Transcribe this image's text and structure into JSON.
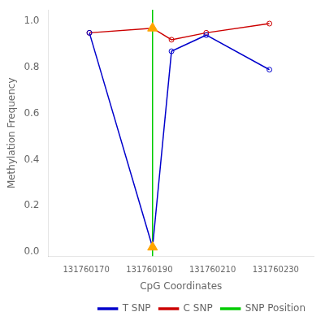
{
  "chart_data": {
    "type": "line",
    "xlabel": "CpG Coordinates",
    "ylabel": "Methylation Frequency",
    "x": [
      131760171,
      131760191,
      131760197,
      131760208,
      131760228
    ],
    "series": [
      {
        "name": "T SNP",
        "color": "#0000CC",
        "marker": "circle",
        "values": [
          0.95,
          0.02,
          0.87,
          0.94,
          0.79
        ]
      },
      {
        "name": "C SNP",
        "color": "#CC0000",
        "marker": "circle",
        "values": [
          0.95,
          0.97,
          0.92,
          0.95,
          0.99
        ]
      },
      {
        "name": "SNP Position",
        "type": "vline",
        "color": "#00CC00",
        "x": 131760191
      }
    ],
    "highlight": {
      "x": 131760191,
      "marker": "triangle",
      "color": "#FFA500"
    },
    "xlim": [
      131760158,
      131760242
    ],
    "xticks": [
      131760170,
      131760190,
      131760210,
      131760230
    ],
    "ylim": [
      -0.02,
      1.05
    ],
    "yticks": [
      {
        "value": 0.0,
        "label": "0.0"
      },
      0.2,
      0.4,
      0.6,
      0.8,
      {
        "value": 1.0,
        "label": "1.0"
      }
    ],
    "grid": false,
    "legend": "lower right"
  }
}
